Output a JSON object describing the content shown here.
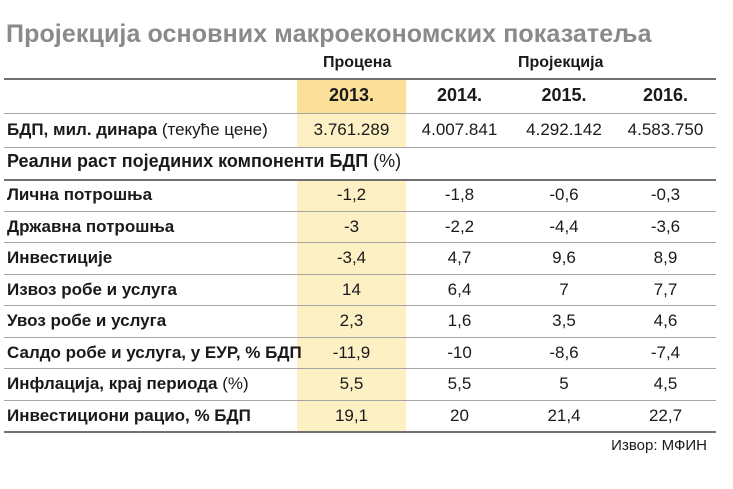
{
  "title": "Пројекција основних макроекономских показатеља",
  "group_headers": {
    "estimate": "Процена",
    "projection": "Пројекција"
  },
  "gdp_row": {
    "label_bold": "БДП, мил. динара",
    "label_normal": "(текуће цене)",
    "values": [
      "3.761.289",
      "4.007.841",
      "4.292.142",
      "4.583.750"
    ]
  },
  "section_title": {
    "bold": "Реални раст појединих компоненти БДП",
    "normal": "(%)"
  },
  "source": "Извор: МФИН",
  "colors": {
    "title_gray": "#8a8a8a",
    "highlight_header": "#fbe09a",
    "highlight_column": "#fdf0c4"
  },
  "chart_data": {
    "type": "table",
    "columns": [
      "2013.",
      "2014.",
      "2015.",
      "2016."
    ],
    "rows": [
      {
        "label_bold": "Лична потрошња",
        "label_normal": "",
        "values": [
          "-1,2",
          "-1,8",
          "-0,6",
          "-0,3"
        ]
      },
      {
        "label_bold": "Државна потрошња",
        "label_normal": "",
        "values": [
          "-3",
          "-2,2",
          "-4,4",
          "-3,6"
        ]
      },
      {
        "label_bold": "Инвестиције",
        "label_normal": "",
        "values": [
          "-3,4",
          "4,7",
          "9,6",
          "8,9"
        ]
      },
      {
        "label_bold": "Извоз робе и услуга",
        "label_normal": "",
        "values": [
          "14",
          "6,4",
          "7",
          "7,7"
        ]
      },
      {
        "label_bold": "Увоз робе и услуга",
        "label_normal": "",
        "values": [
          "2,3",
          "1,6",
          "3,5",
          "4,6"
        ]
      },
      {
        "label_bold": "Салдо робе и услуга, у ЕУР, % БДП",
        "label_normal": "",
        "values": [
          "-11,9",
          "-10",
          "-8,6",
          "-7,4"
        ]
      },
      {
        "label_bold": "Инфлација, крај периода",
        "label_normal": "(%)",
        "values": [
          "5,5",
          "5,5",
          "5",
          "4,5"
        ]
      },
      {
        "label_bold": "Инвестициони рацио, % БДП",
        "label_normal": "",
        "values": [
          "19,1",
          "20",
          "21,4",
          "22,7"
        ]
      }
    ]
  }
}
